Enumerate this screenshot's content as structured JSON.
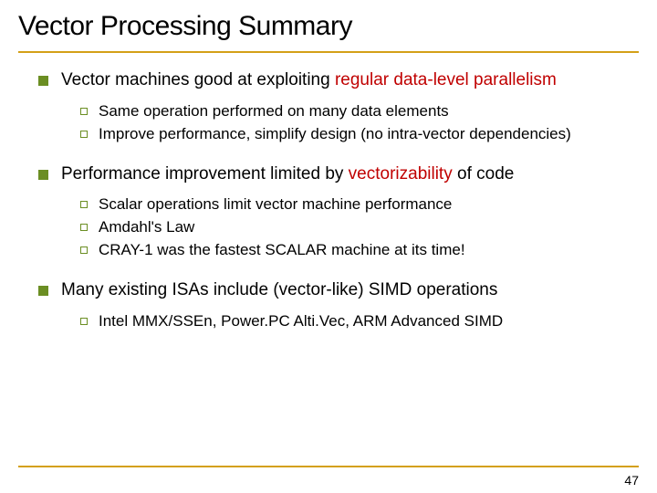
{
  "colors": {
    "accent_rule": "#d4a017",
    "bullet_fill": "#6b8e23",
    "highlight": "#c00000",
    "text": "#000000",
    "background": "#ffffff"
  },
  "title": "Vector Processing Summary",
  "bullets": [
    {
      "prefix": "Vector machines good at exploiting ",
      "highlight": "regular data-level parallelism",
      "suffix": "",
      "sub": [
        "Same operation performed on many data elements",
        "Improve performance, simplify design (no intra-vector dependencies)"
      ]
    },
    {
      "prefix": "Performance improvement limited by ",
      "highlight": "vectorizability",
      "suffix": " of code",
      "sub": [
        "Scalar operations limit vector machine performance",
        "Amdahl's Law",
        "CRAY-1 was the fastest SCALAR machine at its time!"
      ]
    },
    {
      "prefix": "Many existing ISAs include (vector-like) SIMD operations",
      "highlight": "",
      "suffix": "",
      "sub": [
        "Intel MMX/SSEn, Power.PC Alti.Vec, ARM Advanced SIMD"
      ]
    }
  ],
  "page_number": "47"
}
